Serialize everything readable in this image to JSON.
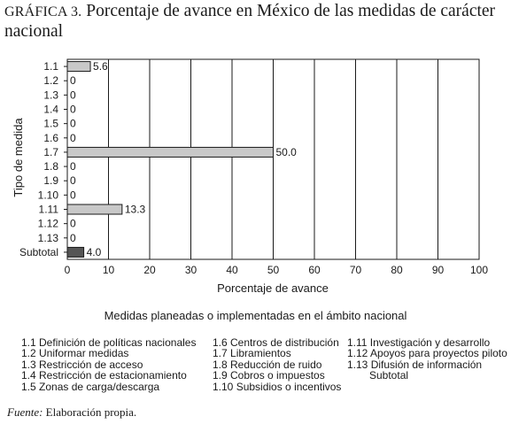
{
  "title": {
    "label": "GRÁFICA 3.",
    "text": "Porcentaje de avance en México de las medidas de carácter nacional"
  },
  "chart_data": {
    "type": "bar",
    "orientation": "horizontal",
    "categories": [
      "1.1",
      "1.2",
      "1.3",
      "1.4",
      "1.5",
      "1.6",
      "1.7",
      "1.8",
      "1.9",
      "1.10",
      "1.11",
      "1.12",
      "1.13",
      "Subtotal"
    ],
    "values": [
      5.6,
      0,
      0,
      0,
      0,
      0,
      50.0,
      0,
      0,
      0,
      13.3,
      0,
      0,
      4.0
    ],
    "data_labels": [
      "5.6",
      "0",
      "0",
      "0",
      "0",
      "0",
      "50.0",
      "0",
      "0",
      "0",
      "13.3",
      "0",
      "0",
      "4.0"
    ],
    "xlabel": "Porcentaje de avance",
    "ylabel": "Tipo de medida",
    "xlim": [
      0,
      100
    ],
    "xticks": [
      "0",
      "10",
      "20",
      "30",
      "40",
      "50",
      "60",
      "70",
      "80",
      "90",
      "100"
    ],
    "grid": "vertical",
    "bar_color": "#c8c8c8",
    "subtotal_color": "#555555"
  },
  "subtitle": "Medidas planeadas o implementadas en el ámbito nacional",
  "legend": {
    "col1": [
      "1.1 Definición de políticas nacionales",
      "1.2 Uniformar medidas",
      "1.3 Restricción de acceso",
      "1.4 Restricción de estacionamiento",
      "1.5 Zonas de carga/descarga"
    ],
    "col2": [
      "1.6 Centros de distribución",
      "1.7 Libramientos",
      "1.8 Reducción de ruido",
      "1.9 Cobros o impuestos",
      "1.10 Subsidios o incentivos"
    ],
    "col3": [
      "1.11 Investigación y desarrollo",
      "1.12 Apoyos para proyectos piloto",
      "1.13 Difusión de información",
      "Subtotal"
    ]
  },
  "source": {
    "label": "Fuente:",
    "text": "Elaboración propia."
  }
}
